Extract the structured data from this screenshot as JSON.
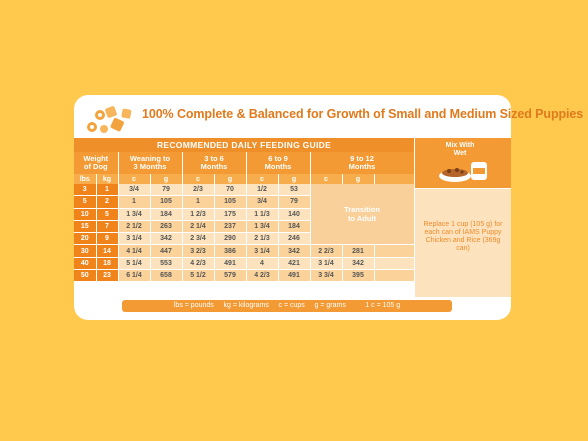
{
  "headline": "100% Complete & Balanced for Growth of Small and Medium Sized Puppies",
  "guide_title": "RECOMMENDED DAILY FEEDING GUIDE",
  "mix": {
    "label_line1": "Mix With",
    "label_line2": "Wet"
  },
  "columns": {
    "weight_line1": "Weight",
    "weight_line2": "of Dog",
    "weaning_line1": "Weaning to",
    "weaning_line2": "3 Months",
    "m3_line1": "3 to 6",
    "m3_line2": "Months",
    "m6_line1": "6 to 9",
    "m6_line2": "Months",
    "m9_line1": "9 to 12",
    "m9_line2": "Months"
  },
  "subheaders": {
    "lbs": "lbs",
    "kg": "kg",
    "c": "c",
    "g": "g"
  },
  "rows": [
    {
      "lbs": "3",
      "kg": "1",
      "a_c": "3/4",
      "a_g": "79",
      "b_c": "2/3",
      "b_g": "70",
      "c_c": "1/2",
      "c_g": "53",
      "d_c": "",
      "d_g": ""
    },
    {
      "lbs": "5",
      "kg": "2",
      "a_c": "1",
      "a_g": "105",
      "b_c": "1",
      "b_g": "105",
      "c_c": "3/4",
      "c_g": "79",
      "d_c": "",
      "d_g": ""
    },
    {
      "lbs": "10",
      "kg": "5",
      "a_c": "1 3/4",
      "a_g": "184",
      "b_c": "1 2/3",
      "b_g": "175",
      "c_c": "1 1/3",
      "c_g": "140",
      "d_c": "",
      "d_g": ""
    },
    {
      "lbs": "15",
      "kg": "7",
      "a_c": "2 1/2",
      "a_g": "263",
      "b_c": "2 1/4",
      "b_g": "237",
      "c_c": "1 3/4",
      "c_g": "184",
      "d_c": "",
      "d_g": ""
    },
    {
      "lbs": "20",
      "kg": "9",
      "a_c": "3 1/4",
      "a_g": "342",
      "b_c": "2 3/4",
      "b_g": "290",
      "c_c": "2 1/3",
      "c_g": "246",
      "d_c": "",
      "d_g": ""
    },
    {
      "lbs": "30",
      "kg": "14",
      "a_c": "4 1/4",
      "a_g": "447",
      "b_c": "3 2/3",
      "b_g": "386",
      "c_c": "3 1/4",
      "c_g": "342",
      "d_c": "2 2/3",
      "d_g": "281"
    },
    {
      "lbs": "40",
      "kg": "18",
      "a_c": "5 1/4",
      "a_g": "553",
      "b_c": "4 2/3",
      "b_g": "491",
      "c_c": "4",
      "c_g": "421",
      "d_c": "3 1/4",
      "d_g": "342"
    },
    {
      "lbs": "50",
      "kg": "23",
      "a_c": "6 1/4",
      "a_g": "658",
      "b_c": "5 1/2",
      "b_g": "579",
      "c_c": "4 2/3",
      "c_g": "491",
      "d_c": "3 3/4",
      "d_g": "395"
    }
  ],
  "transition_line1": "Transition",
  "transition_line2": "to Adult",
  "replace_text": "Replace 1 cup (105 g) for each can of IAMS Puppy Chicken and Rice (369g can)",
  "legend": "lbs = pounds     kg = kilograms     c = cups     g = grams          1 c = 105 g"
}
